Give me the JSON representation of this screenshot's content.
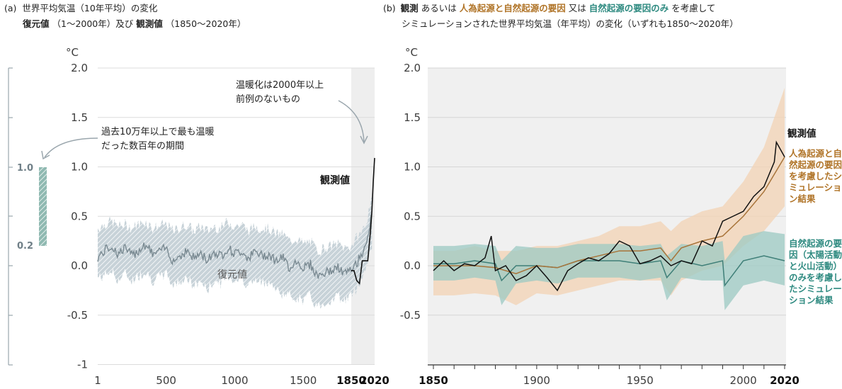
{
  "panel_a": {
    "title_line1_prefix": "(a)",
    "title_line1_text": "世界平均気温（10年平均）の変化",
    "title_line2_part1": "復元値",
    "title_line2_part2": "（1～2000年）及び",
    "title_line2_part3": "観測値",
    "title_line2_part4": "（1850～2020年）",
    "unit": "°C",
    "annotation_warm_line1": "温暖化は2000年以上",
    "annotation_warm_line2": "前例のないもの",
    "annotation_past_line1": "過去10万年以上で最も温暖",
    "annotation_past_line2": "だった数百年の期間",
    "label_observed": "観測値",
    "label_reconstructed": "復元値",
    "side_bar_top": "1.0",
    "side_bar_bottom": "0.2"
  },
  "panel_b": {
    "title_line1_prefix": "(b)",
    "title_line1_p1": "観測",
    "title_line1_p2": "あるいは",
    "title_line1_p3": "人為起源と自然起源の要因",
    "title_line1_p4": "又は",
    "title_line1_p5": "自然起源の要因のみ",
    "title_line1_p6": "を考慮して",
    "title_line2": "シミュレーションされた世界平均気温（年平均）の変化（いずれも1850～2020年）",
    "unit": "°C",
    "label_observed": "観測値",
    "label_human_natural": [
      "人為起源と自",
      "然起源の要因",
      "を考慮したシ",
      "ミュレーショ",
      "ン結果"
    ],
    "label_natural": [
      "自然起源の要",
      "因（太陽活動",
      "と火山活動）",
      "のみを考慮し",
      "たシミュレー",
      "ション結果"
    ]
  },
  "colors": {
    "observed": "#111111",
    "reconstructed": "#7a8a92",
    "reconstructed_band": "#b8c5cc",
    "human_natural": "#a8743a",
    "human_natural_band": "#f3d3b4",
    "natural": "#3f7f78",
    "natural_band": "#9ccac3",
    "highlight_bg": "#eeeeee",
    "text_orange": "#b07428",
    "text_teal": "#2e8a80"
  },
  "chart_data": [
    {
      "type": "line",
      "ylim": [
        -1,
        2
      ],
      "yticks": [
        "2.0",
        "1.5",
        "1.0",
        "0.5",
        "0.0",
        "-0.5",
        "-1"
      ],
      "xticks": [
        "1",
        "500",
        "1000",
        "1500",
        "1850",
        "2020"
      ],
      "series": [
        {
          "name": "復元値",
          "x": [
            1,
            50,
            100,
            150,
            200,
            250,
            300,
            350,
            400,
            450,
            500,
            550,
            600,
            650,
            700,
            750,
            800,
            850,
            900,
            950,
            1000,
            1050,
            1100,
            1150,
            1200,
            1250,
            1300,
            1350,
            1400,
            1450,
            1500,
            1550,
            1600,
            1650,
            1700,
            1750,
            1800,
            1850,
            1900,
            1950,
            2000
          ],
          "values": [
            0.08,
            0.15,
            0.2,
            0.12,
            0.18,
            0.1,
            0.16,
            0.22,
            0.12,
            0.14,
            0.18,
            0.05,
            0.1,
            0.15,
            0.08,
            0.12,
            0.06,
            0.14,
            0.1,
            0.18,
            0.12,
            0.15,
            0.08,
            0.14,
            0.1,
            0.12,
            0.05,
            0.08,
            -0.02,
            0.05,
            -0.02,
            0.02,
            -0.1,
            -0.08,
            -0.05,
            -0.02,
            -0.08,
            -0.05,
            0.05,
            0.2,
            0.5
          ],
          "upper": [
            0.38,
            0.42,
            0.45,
            0.4,
            0.42,
            0.38,
            0.42,
            0.45,
            0.38,
            0.4,
            0.42,
            0.35,
            0.38,
            0.42,
            0.35,
            0.4,
            0.35,
            0.4,
            0.38,
            0.45,
            0.4,
            0.42,
            0.35,
            0.4,
            0.38,
            0.38,
            0.32,
            0.32,
            0.25,
            0.28,
            0.22,
            0.25,
            0.15,
            0.18,
            0.2,
            0.22,
            0.18,
            0.2,
            0.3,
            0.4,
            0.65
          ],
          "lower": [
            -0.12,
            -0.1,
            -0.05,
            -0.15,
            -0.08,
            -0.15,
            -0.1,
            -0.05,
            -0.15,
            -0.12,
            -0.08,
            -0.2,
            -0.15,
            -0.12,
            -0.22,
            -0.15,
            -0.25,
            -0.15,
            -0.18,
            -0.1,
            -0.15,
            -0.12,
            -0.2,
            -0.15,
            -0.18,
            -0.15,
            -0.25,
            -0.28,
            -0.3,
            -0.32,
            -0.35,
            -0.3,
            -0.42,
            -0.38,
            -0.35,
            -0.3,
            -0.35,
            -0.3,
            -0.2,
            -0.05,
            0.2
          ]
        },
        {
          "name": "観測値",
          "x": [
            1850,
            1870,
            1890,
            1910,
            1930,
            1950,
            1970,
            1990,
            2000,
            2010,
            2020
          ],
          "values": [
            -0.05,
            -0.05,
            -0.15,
            -0.18,
            0.05,
            0.05,
            0.05,
            0.35,
            0.55,
            0.85,
            1.09
          ]
        }
      ]
    },
    {
      "type": "line",
      "ylim": [
        -1,
        2
      ],
      "yticks": [
        "2.0",
        "1.5",
        "1.0",
        "0.5",
        "0.0",
        "-0.5"
      ],
      "xticks": [
        "1850",
        "1900",
        "1950",
        "2000",
        "2020"
      ],
      "series": [
        {
          "name": "観測値",
          "x": [
            1850,
            1855,
            1860,
            1865,
            1870,
            1875,
            1878,
            1880,
            1885,
            1890,
            1895,
            1900,
            1905,
            1910,
            1915,
            1920,
            1925,
            1930,
            1935,
            1940,
            1945,
            1950,
            1955,
            1960,
            1965,
            1970,
            1975,
            1980,
            1985,
            1990,
            1995,
            2000,
            2005,
            2010,
            2015,
            2016,
            2020
          ],
          "values": [
            -0.05,
            0.05,
            -0.05,
            0.02,
            0.0,
            0.08,
            0.3,
            -0.05,
            0.0,
            -0.15,
            -0.1,
            0.0,
            -0.12,
            -0.25,
            -0.05,
            0.02,
            0.08,
            0.05,
            0.12,
            0.25,
            0.2,
            0.02,
            0.05,
            0.1,
            0.0,
            0.05,
            0.02,
            0.25,
            0.2,
            0.45,
            0.5,
            0.55,
            0.7,
            0.8,
            1.05,
            1.25,
            1.1
          ]
        },
        {
          "name": "人為起源と自然起源の要因を考慮したシミュレーション結果",
          "x": [
            1850,
            1860,
            1870,
            1880,
            1890,
            1900,
            1910,
            1920,
            1930,
            1940,
            1950,
            1960,
            1965,
            1970,
            1980,
            1990,
            2000,
            2010,
            2020
          ],
          "values": [
            0.0,
            0.0,
            0.0,
            -0.02,
            -0.08,
            0.0,
            -0.02,
            0.05,
            0.1,
            0.15,
            0.15,
            0.18,
            0.05,
            0.18,
            0.25,
            0.3,
            0.5,
            0.75,
            1.1
          ],
          "upper": [
            0.15,
            0.15,
            0.2,
            0.15,
            0.15,
            0.2,
            0.2,
            0.25,
            0.3,
            0.4,
            0.4,
            0.45,
            0.35,
            0.45,
            0.55,
            0.6,
            0.85,
            1.2,
            1.8
          ],
          "lower": [
            -0.3,
            -0.3,
            -0.28,
            -0.3,
            -0.4,
            -0.28,
            -0.3,
            -0.25,
            -0.2,
            -0.15,
            -0.15,
            -0.15,
            -0.3,
            -0.15,
            -0.05,
            0.0,
            0.2,
            0.35,
            0.6
          ]
        },
        {
          "name": "自然起源の要因（太陽活動と火山活動）のみを考慮したシミュレーション結果",
          "x": [
            1850,
            1860,
            1870,
            1880,
            1883,
            1890,
            1900,
            1910,
            1920,
            1930,
            1940,
            1950,
            1960,
            1963,
            1970,
            1980,
            1990,
            1991,
            2000,
            2010,
            2020
          ],
          "values": [
            0.02,
            0.02,
            0.05,
            0.02,
            -0.15,
            0.0,
            0.0,
            -0.02,
            0.05,
            0.05,
            0.05,
            0.02,
            0.05,
            -0.12,
            0.05,
            0.0,
            0.05,
            -0.2,
            0.05,
            0.1,
            0.05
          ],
          "upper": [
            0.2,
            0.2,
            0.22,
            0.2,
            0.05,
            0.2,
            0.18,
            0.18,
            0.22,
            0.22,
            0.22,
            0.2,
            0.22,
            0.1,
            0.22,
            0.2,
            0.25,
            0.05,
            0.3,
            0.35,
            0.32
          ],
          "lower": [
            -0.15,
            -0.15,
            -0.12,
            -0.15,
            -0.4,
            -0.18,
            -0.15,
            -0.18,
            -0.12,
            -0.12,
            -0.12,
            -0.15,
            -0.12,
            -0.35,
            -0.12,
            -0.15,
            -0.15,
            -0.45,
            -0.2,
            -0.15,
            -0.2
          ]
        }
      ]
    }
  ]
}
